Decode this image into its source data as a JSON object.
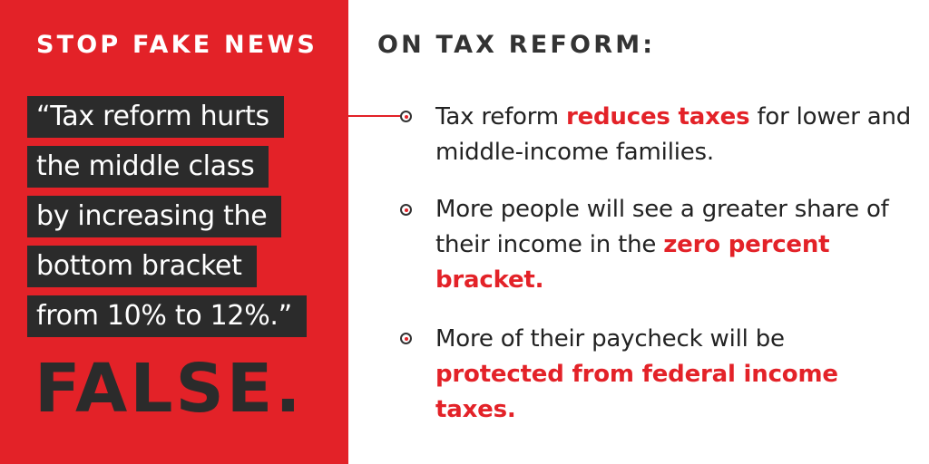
{
  "left": {
    "brand_title": "STOP FAKE NEWS",
    "quote_lines": [
      "“Tax reform hurts",
      "the middle class",
      "by increasing the",
      "bottom bracket",
      "from 10% to 12%.”"
    ],
    "verdict": "FALSE."
  },
  "right": {
    "title": "ON TAX REFORM:",
    "points": [
      {
        "before": "Tax reform ",
        "highlight": "reduces taxes",
        "after": " for lower and middle-income families."
      },
      {
        "before": "More people will see a greater share of their income in the ",
        "highlight": "zero percent bracket.",
        "after": ""
      },
      {
        "before": "More of their paycheck will be ",
        "highlight": "protected from federal income taxes.",
        "after": ""
      }
    ]
  },
  "colors": {
    "accent_red": "#e32228",
    "dark_box": "#2b2b2b",
    "white": "#ffffff"
  },
  "icons": [
    "bullet-dot-icon"
  ]
}
